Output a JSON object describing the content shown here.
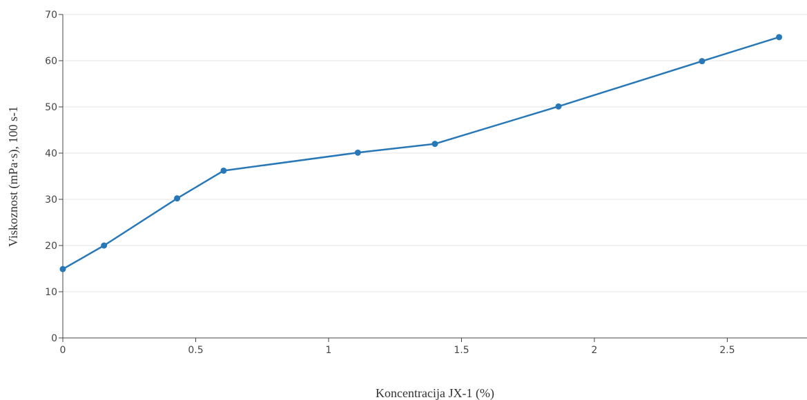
{
  "chart_data": {
    "type": "line",
    "title": "",
    "xlabel": "Koncentracija JX-1 (%)",
    "ylabel": "Viskoznost (mPa·s), 100 s-1",
    "xlim": [
      0,
      2.8
    ],
    "ylim": [
      0,
      70
    ],
    "x_ticks": [
      0,
      0.5,
      1,
      1.5,
      2,
      2.5
    ],
    "x_tick_labels": [
      "0",
      "0.5",
      "1",
      "1.5",
      "2",
      "2.5"
    ],
    "y_ticks": [
      0,
      10,
      20,
      30,
      40,
      50,
      60,
      70
    ],
    "y_tick_labels": [
      "0",
      "10",
      "20",
      "30",
      "40",
      "50",
      "60",
      "70"
    ],
    "grid": "horizontal",
    "legend": "none",
    "series": [
      {
        "color": "#2878b8",
        "x": [
          0,
          0.155,
          0.43,
          0.605,
          1.11,
          1.4,
          1.865,
          2.405,
          2.695
        ],
        "y": [
          14.9,
          20,
          30.2,
          36.2,
          40.1,
          42,
          50.1,
          59.9,
          65.1
        ]
      }
    ]
  }
}
